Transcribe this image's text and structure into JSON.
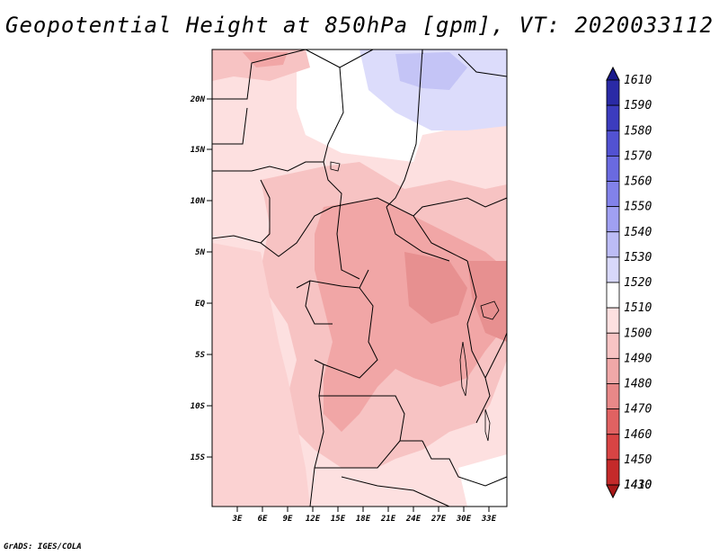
{
  "title": "Geopotential Height at 850hPa [gpm], VT: 2020033112",
  "credit": "GrADS: IGES/COLA",
  "lat_labels": [
    "20N",
    "15N",
    "10N",
    "5N",
    "EQ",
    "5S",
    "10S",
    "15S"
  ],
  "lon_labels": [
    "3E",
    "6E",
    "9E",
    "12E",
    "15E",
    "18E",
    "21E",
    "24E",
    "27E",
    "30E",
    "33E"
  ],
  "colorbar": {
    "levels": [
      "1610",
      "1590",
      "1580",
      "1570",
      "1560",
      "1550",
      "1540",
      "1530",
      "1520",
      "1510",
      "1500",
      "1490",
      "1480",
      "1470",
      "1460",
      "1450",
      "1430",
      "1410"
    ],
    "colors": [
      "#1a1a8c",
      "#2a2aa6",
      "#3c3cbe",
      "#5252d2",
      "#6a6ae0",
      "#8282ea",
      "#a0a0f2",
      "#bcbcf6",
      "#d8d8fa",
      "#ffffff",
      "#fde0e0",
      "#f8c4c4",
      "#f0a8a8",
      "#e88888",
      "#e06262",
      "#d84444",
      "#c42a2a",
      "#a81818"
    ]
  },
  "field_colors": {
    "h1510": "#ffffff",
    "h1500": "#fde0e0",
    "h1490": "#f7c3c3",
    "h1480": "#f1a6a6",
    "h1470": "#e79090",
    "h1520": "#dcdcfb",
    "h1530": "#c4c4f6"
  }
}
